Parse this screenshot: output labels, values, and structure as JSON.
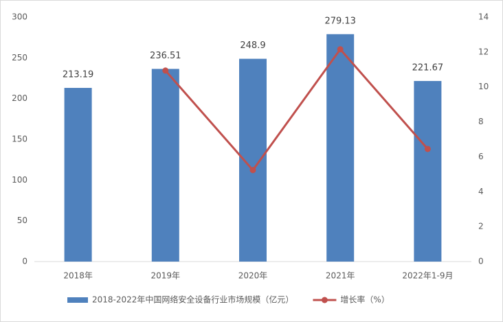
{
  "chart_data": {
    "type": "bar",
    "categories": [
      "2018年",
      "2019年",
      "2020年",
      "2021年",
      "2022年1-9月"
    ],
    "series": [
      {
        "name": "2018-2022年中国网络安全设备行业市场规模（亿元）",
        "type": "bar",
        "color": "#4f81bd",
        "values": [
          213.19,
          236.51,
          248.9,
          279.13,
          221.67
        ]
      },
      {
        "name": "增长率（%）",
        "type": "line",
        "axis": "y2",
        "color": "#c0504d",
        "values": [
          null,
          10.94,
          5.24,
          12.16,
          6.45
        ]
      }
    ],
    "ylim": [
      0,
      300
    ],
    "yticks": [
      0,
      50,
      100,
      150,
      200,
      250,
      300
    ],
    "y2lim": [
      0,
      14
    ],
    "y2ticks": [
      0,
      2,
      4,
      6,
      8,
      10,
      12,
      14
    ]
  }
}
